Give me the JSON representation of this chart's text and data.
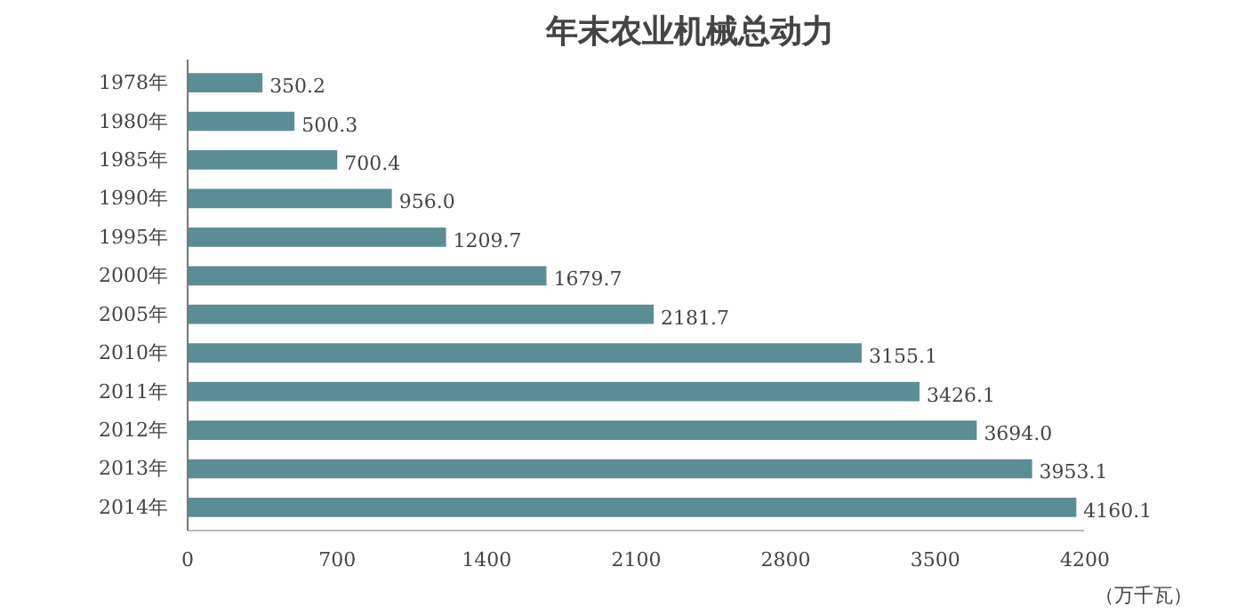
{
  "chart_data": {
    "type": "bar",
    "orientation": "horizontal",
    "title": "年末农业机械总动力",
    "xlabel": "（万千瓦）",
    "categories": [
      "1978年",
      "1980年",
      "1985年",
      "1990年",
      "1995年",
      "2000年",
      "2005年",
      "2010年",
      "2011年",
      "2012年",
      "2013年",
      "2014年"
    ],
    "values": [
      350.2,
      500.3,
      700.4,
      956.0,
      1209.7,
      1679.7,
      2181.7,
      3155.1,
      3426.1,
      3694.0,
      3953.1,
      4160.1
    ],
    "color": "#5b8d96",
    "value_labels": [
      "350.2",
      "500.3",
      "700.4",
      "956.0",
      "1209.7",
      "1679.7",
      "2181.7",
      "3155.1",
      "3426.1",
      "3694.0",
      "3953.1",
      "4160.1"
    ],
    "xlim": [
      0,
      4200
    ],
    "xticks": [
      0,
      700,
      1400,
      2100,
      2800,
      3500,
      4200
    ],
    "grid": false
  }
}
